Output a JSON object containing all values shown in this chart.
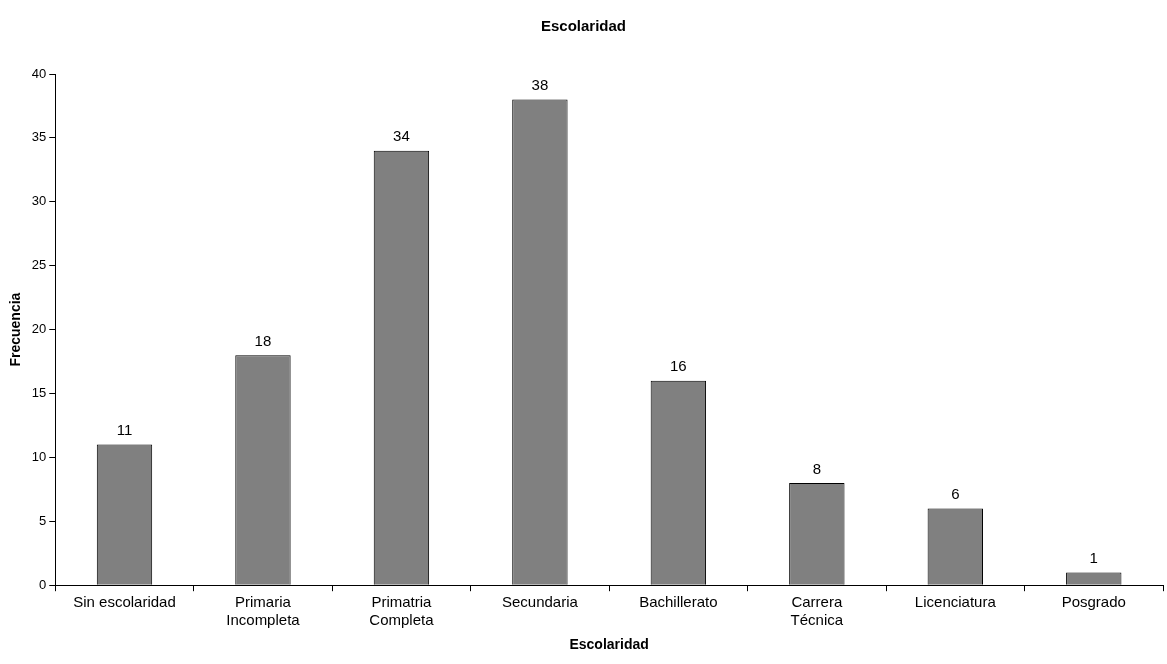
{
  "chart_data": {
    "type": "bar",
    "title": "Escolaridad",
    "xlabel": "Escolaridad",
    "ylabel": "Frecuencia",
    "categories": [
      "Sin escolaridad",
      "Primaria\nIncompleta",
      "Primatria\nCompleta",
      "Secundaria",
      "Bachillerato",
      "Carrera\nTécnica",
      "Licenciatura",
      "Posgrado"
    ],
    "values": [
      11,
      18,
      34,
      38,
      16,
      8,
      6,
      1
    ],
    "color": "#808080",
    "ylim": [
      0,
      40
    ],
    "yticks": [
      0,
      5,
      10,
      15,
      20,
      25,
      30,
      35,
      40
    ],
    "grid": false,
    "legend": false,
    "data_labels": true
  }
}
